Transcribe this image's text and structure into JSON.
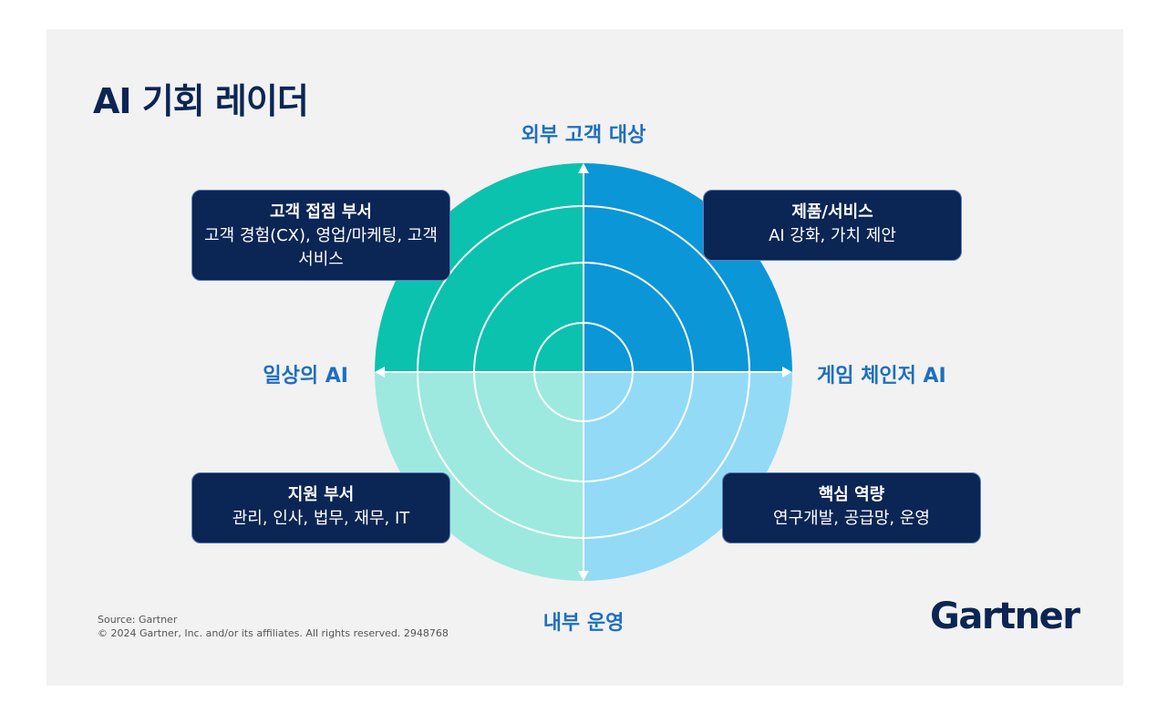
{
  "title": "AI 기회 레이더",
  "axes": {
    "top": "외부 고객 대상",
    "bottom": "내부 운영",
    "left": "일상의 AI",
    "right": "게임 체인저 AI"
  },
  "quadrants": {
    "top_left": {
      "title": "고객 접점 부서",
      "body": "고객 경험(CX), 영업/마케팅, 고객 서비스"
    },
    "top_right": {
      "title": "제품/서비스",
      "body": "AI 강화, 가치 제안"
    },
    "bottom_left": {
      "title": "지원 부서",
      "body": "관리, 인사, 법무, 재무, IT"
    },
    "bottom_right": {
      "title": "핵심 역량",
      "body": "연구개발, 공급망, 운영"
    }
  },
  "colors": {
    "top_left": "#0bc2ae",
    "top_right": "#0b96d8",
    "bottom_left": "#9de9df",
    "bottom_right": "#93daf7",
    "box": "#0b2554",
    "axis_label": "#1e6fbf"
  },
  "footer": {
    "source": "Source: Gartner",
    "copyright": "© 2024 Gartner, Inc. and/or its affiliates. All rights reserved. 2948768"
  },
  "logo": "Gartner"
}
